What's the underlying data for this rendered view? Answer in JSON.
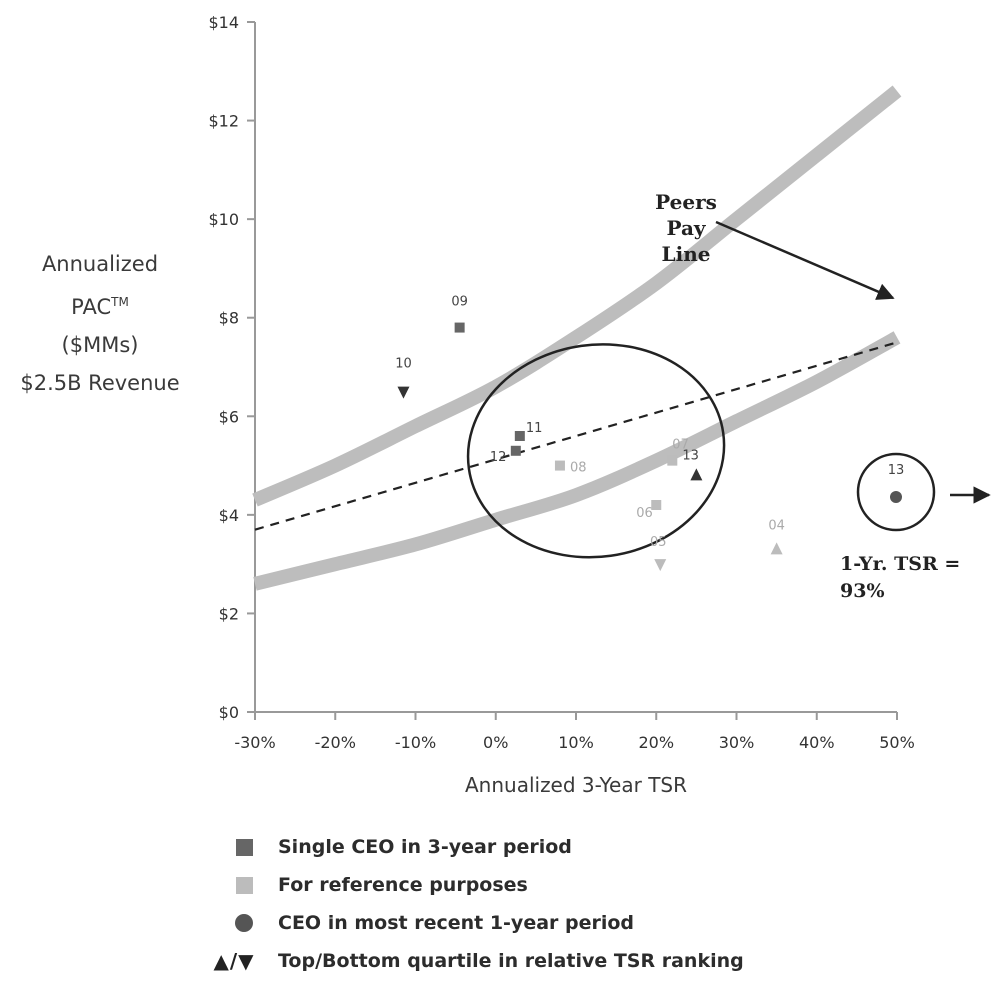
{
  "chart_data": {
    "type": "scatter",
    "title": "",
    "ylabel_lines": [
      "Annualized",
      "PAC",
      "($MMs)",
      "$2.5B Revenue"
    ],
    "ylabel_sup": "TM",
    "xlabel": "Annualized 3-Year TSR",
    "xlim": [
      -30,
      50
    ],
    "ylim": [
      0,
      14
    ],
    "x_ticks": [
      -30,
      -20,
      -10,
      0,
      10,
      20,
      30,
      40,
      50
    ],
    "x_tick_labels": [
      "-30%",
      "-20%",
      "-10%",
      "0%",
      "10%",
      "20%",
      "30%",
      "40%",
      "50%"
    ],
    "y_ticks": [
      0,
      2,
      4,
      6,
      8,
      10,
      12,
      14
    ],
    "y_tick_labels": [
      "$0",
      "$2",
      "$4",
      "$6",
      "$8",
      "$10",
      "$12",
      "$14"
    ],
    "grid": false,
    "points": [
      {
        "label": "09",
        "x": -4.5,
        "y": 7.8,
        "marker": "square",
        "shade": "dark"
      },
      {
        "label": "10",
        "x": -11.5,
        "y": 6.5,
        "marker": "triangle-down",
        "shade": "dark"
      },
      {
        "label": "11",
        "x": 3.0,
        "y": 5.6,
        "marker": "square",
        "shade": "dark"
      },
      {
        "label": "12",
        "x": 2.5,
        "y": 5.3,
        "marker": "square",
        "shade": "dark"
      },
      {
        "label": "08",
        "x": 8.0,
        "y": 5.0,
        "marker": "square",
        "shade": "light"
      },
      {
        "label": "07",
        "x": 22.0,
        "y": 5.1,
        "marker": "square",
        "shade": "light"
      },
      {
        "label": "13",
        "x": 25.0,
        "y": 4.8,
        "marker": "triangle-up",
        "shade": "dark"
      },
      {
        "label": "06",
        "x": 20.0,
        "y": 4.2,
        "marker": "square",
        "shade": "light"
      },
      {
        "label": "05",
        "x": 20.5,
        "y": 3.0,
        "marker": "triangle-down",
        "shade": "light"
      },
      {
        "label": "04",
        "x": 35.0,
        "y": 3.3,
        "marker": "triangle-up",
        "shade": "light"
      }
    ],
    "pay_line_upper": [
      {
        "x": -30,
        "y": 4.3
      },
      {
        "x": -20,
        "y": 5.0
      },
      {
        "x": -10,
        "y": 5.8
      },
      {
        "x": 0,
        "y": 6.6
      },
      {
        "x": 10,
        "y": 7.6
      },
      {
        "x": 20,
        "y": 8.7
      },
      {
        "x": 30,
        "y": 10.0
      },
      {
        "x": 40,
        "y": 11.3
      },
      {
        "x": 50,
        "y": 12.6
      }
    ],
    "pay_line_lower": [
      {
        "x": -30,
        "y": 2.6
      },
      {
        "x": -20,
        "y": 3.0
      },
      {
        "x": -10,
        "y": 3.4
      },
      {
        "x": 0,
        "y": 3.9
      },
      {
        "x": 10,
        "y": 4.4
      },
      {
        "x": 20,
        "y": 5.1
      },
      {
        "x": 30,
        "y": 5.9
      },
      {
        "x": 40,
        "y": 6.7
      },
      {
        "x": 50,
        "y": 7.6
      }
    ],
    "trend_line": [
      {
        "x": -30,
        "y": 3.7
      },
      {
        "x": 50,
        "y": 7.5
      }
    ],
    "ellipse": {
      "cx": 12.5,
      "cy": 5.3,
      "rx": 16.0,
      "ry": 2.15
    },
    "peers_annotation": {
      "lines": [
        "Peers",
        "Pay",
        "Line"
      ],
      "arrow_to": {
        "x": 50,
        "y": 8.4
      }
    },
    "recent_point": {
      "label": "13",
      "note_lines": [
        "1-Yr. TSR =",
        "93%"
      ],
      "arrow": "→"
    },
    "legend": [
      {
        "symbol": "square-dark",
        "label": "Single CEO in 3-year period"
      },
      {
        "symbol": "square-light",
        "label": "For reference purposes"
      },
      {
        "symbol": "circle",
        "label": "CEO in most recent 1-year period"
      },
      {
        "symbol": "triangles",
        "label": "Top/Bottom quartile in relative TSR ranking",
        "marker_text": "▲/▼"
      }
    ],
    "colors": {
      "dark": "#666666",
      "light": "#bcbcbc",
      "band": "#bdbdbd",
      "axis": "#999999",
      "text": "#333333"
    }
  }
}
